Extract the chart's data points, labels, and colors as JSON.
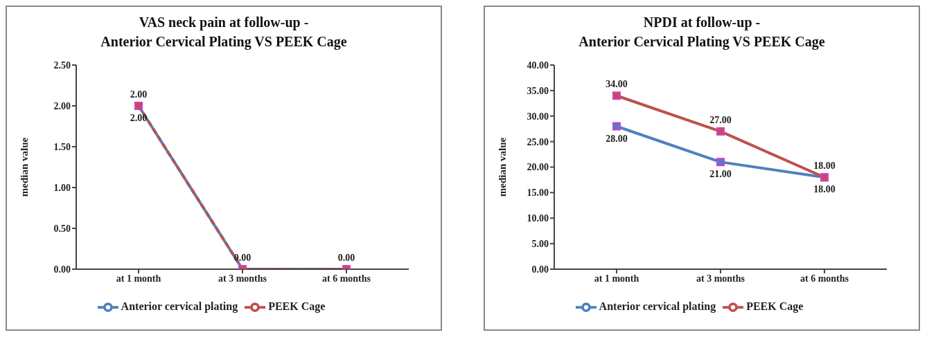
{
  "chart_data": [
    {
      "type": "line",
      "title": "VAS neck pain at follow-up -\nAnterior Cervical Plating VS PEEK Cage",
      "ylabel": "median value",
      "categories": [
        "at 1 month",
        "at 3 months",
        "at 6 months"
      ],
      "ylim": [
        0,
        2.5
      ],
      "yticks": [
        {
          "value": 0,
          "label": "0.00"
        },
        {
          "value": 0.5,
          "label": "0.50"
        },
        {
          "value": 1,
          "label": "1.00"
        },
        {
          "value": 1.5,
          "label": "1.50"
        },
        {
          "value": 2,
          "label": "2.00"
        },
        {
          "value": 2.5,
          "label": "2.50"
        }
      ],
      "grid": false,
      "legend": "bottom",
      "marker": "square",
      "series": [
        {
          "name": "Anterior cervical plating",
          "color": "#4f81bd",
          "values": [
            2,
            0,
            0
          ],
          "value_labels": [
            "2.00",
            null,
            null
          ],
          "line_style": "solid"
        },
        {
          "name": "PEEK Cage",
          "color": "#c0504d",
          "values": [
            2,
            0,
            0
          ],
          "value_labels": [
            "2.00",
            "0.00",
            "0.00"
          ],
          "line_style": "dashed"
        }
      ]
    },
    {
      "type": "line",
      "title": "NPDI at follow-up -\nAnterior Cervical Plating VS PEEK Cage",
      "ylabel": "median value",
      "categories": [
        "at 1 month",
        "at 3 months",
        "at 6 months"
      ],
      "ylim": [
        0,
        40
      ],
      "yticks": [
        {
          "value": 0,
          "label": "0.00"
        },
        {
          "value": 5,
          "label": "5.00"
        },
        {
          "value": 10,
          "label": "10.00"
        },
        {
          "value": 15,
          "label": "15.00"
        },
        {
          "value": 20,
          "label": "20.00"
        },
        {
          "value": 25,
          "label": "25.00"
        },
        {
          "value": 30,
          "label": "30.00"
        },
        {
          "value": 35,
          "label": "35.00"
        },
        {
          "value": 40,
          "label": "40.00"
        }
      ],
      "grid": false,
      "legend": "bottom",
      "marker": "square",
      "series": [
        {
          "name": "Anterior cervical plating",
          "color": "#4f81bd",
          "values": [
            28,
            21,
            18
          ],
          "value_labels": [
            "28.00",
            "21.00",
            "18.00"
          ],
          "line_style": "solid"
        },
        {
          "name": "PEEK Cage",
          "color": "#c0504d",
          "values": [
            34,
            27,
            18
          ],
          "value_labels": [
            "34.00",
            "27.00",
            "18.00"
          ],
          "line_style": "solid"
        }
      ]
    }
  ]
}
